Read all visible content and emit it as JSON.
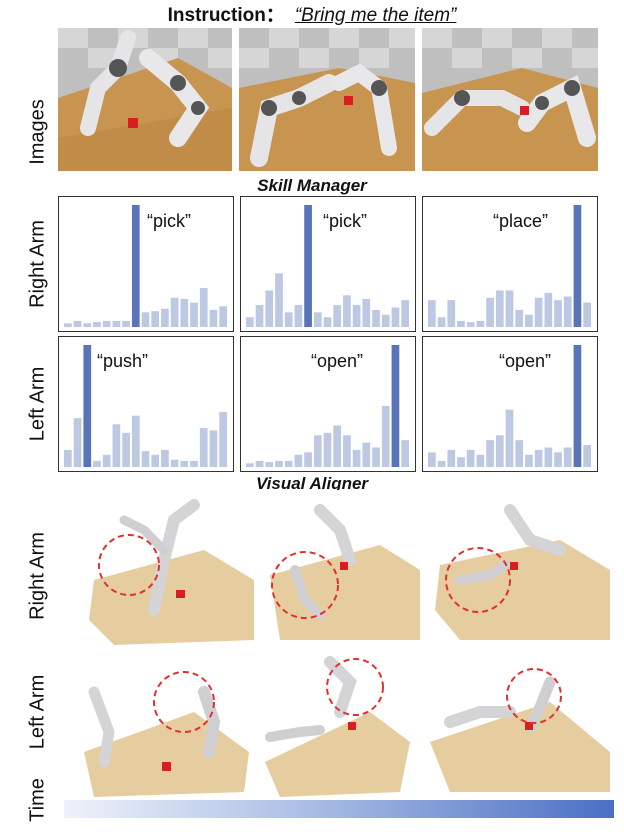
{
  "header": {
    "instruction_label": "Instruction：",
    "instruction_text": "“Bring me the item”"
  },
  "row_labels": {
    "images": "Images",
    "right_arm": "Right Arm",
    "left_arm": "Left Arm",
    "right_arm_2": "Right Arm",
    "left_arm_2": "Left Arm",
    "time": "Time"
  },
  "sections": {
    "skill_manager": "Skill Manager",
    "visual_aligner": "Visual Aligner"
  },
  "skill_manager": {
    "right_arm": [
      {
        "skill": "“pick”",
        "highlight_index": 7,
        "values": [
          3,
          5,
          3,
          4,
          5,
          5,
          5,
          100,
          12,
          13,
          15,
          24,
          23,
          20,
          32,
          14,
          17
        ]
      },
      {
        "skill": "“pick”",
        "highlight_index": 6,
        "values": [
          8,
          18,
          30,
          44,
          12,
          18,
          100,
          12,
          8,
          18,
          26,
          18,
          23,
          14,
          10,
          16,
          22
        ]
      },
      {
        "skill": "“place”",
        "highlight_index": 15,
        "values": [
          22,
          8,
          22,
          5,
          4,
          5,
          24,
          30,
          30,
          14,
          10,
          24,
          28,
          22,
          25,
          100,
          20
        ]
      }
    ],
    "left_arm": [
      {
        "skill": "“push”",
        "highlight_index": 2,
        "values": [
          14,
          40,
          100,
          5,
          10,
          35,
          28,
          42,
          13,
          10,
          14,
          6,
          5,
          5,
          32,
          30,
          45
        ]
      },
      {
        "skill": "“open”",
        "highlight_index": 15,
        "values": [
          3,
          5,
          4,
          5,
          5,
          10,
          12,
          26,
          28,
          34,
          26,
          14,
          20,
          16,
          50,
          100,
          22
        ]
      },
      {
        "skill": "“open”",
        "highlight_index": 15,
        "values": [
          12,
          5,
          14,
          8,
          14,
          10,
          22,
          26,
          47,
          22,
          10,
          14,
          16,
          12,
          16,
          100,
          18
        ]
      }
    ]
  },
  "colors": {
    "highlight_bar": "#5a74b9",
    "normal_bar": "#bdc8e2",
    "sand": "#e3c895",
    "robot": "#d4d4d6",
    "target_cube": "#d81e1e",
    "focus_circle": "#e03030"
  }
}
